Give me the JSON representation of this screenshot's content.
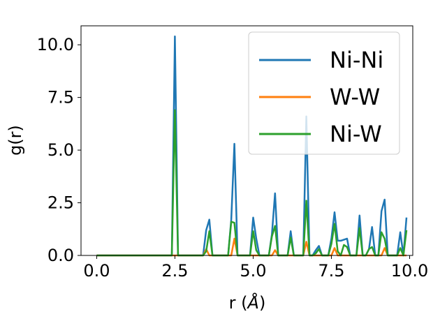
{
  "chart_data": {
    "type": "line",
    "title": "",
    "xlabel_base": "r (",
    "xlabel_unit": "Å",
    "xlabel_end": ")",
    "ylabel": "g(r)",
    "xlim": [
      -0.5,
      10.1
    ],
    "ylim": [
      0,
      10.9
    ],
    "xticks": [
      0.0,
      2.5,
      5.0,
      7.5,
      10.0
    ],
    "xtick_labels": [
      "0.0",
      "2.5",
      "5.0",
      "7.5",
      "10.0"
    ],
    "yticks": [
      0.0,
      2.5,
      5.0,
      7.5,
      10.0
    ],
    "ytick_labels": [
      "0.0",
      "2.5",
      "5.0",
      "7.5",
      "10.0"
    ],
    "grid": false,
    "legend_position": "top-right",
    "x": [
      0,
      0.1,
      0.2,
      0.3,
      0.4,
      0.5,
      0.6,
      0.7,
      0.8,
      0.9,
      1.0,
      1.1,
      1.2,
      1.3,
      1.4,
      1.5,
      1.6,
      1.7,
      1.8,
      1.9,
      2.0,
      2.1,
      2.2,
      2.3,
      2.4,
      2.5,
      2.6,
      2.7,
      2.8,
      2.9,
      3.0,
      3.1,
      3.2,
      3.3,
      3.4,
      3.5,
      3.6,
      3.7,
      3.8,
      3.9,
      4.0,
      4.1,
      4.2,
      4.3,
      4.4,
      4.5,
      4.6,
      4.7,
      4.8,
      4.9,
      5.0,
      5.1,
      5.2,
      5.3,
      5.4,
      5.5,
      5.6,
      5.7,
      5.8,
      5.9,
      6.0,
      6.1,
      6.2,
      6.3,
      6.4,
      6.5,
      6.6,
      6.7,
      6.8,
      6.9,
      7.0,
      7.1,
      7.2,
      7.3,
      7.4,
      7.5,
      7.6,
      7.7,
      7.8,
      7.9,
      8.0,
      8.1,
      8.2,
      8.3,
      8.4,
      8.5,
      8.6,
      8.7,
      8.8,
      8.9,
      9.0,
      9.1,
      9.2,
      9.3,
      9.4,
      9.5,
      9.6,
      9.7,
      9.8,
      9.9
    ],
    "series": [
      {
        "name": "Ni-Ni",
        "color": "#1f77b4",
        "values": [
          0,
          0,
          0,
          0,
          0,
          0,
          0,
          0,
          0,
          0,
          0,
          0,
          0,
          0,
          0,
          0,
          0,
          0,
          0,
          0,
          0,
          0,
          0,
          0,
          0,
          10.4,
          0,
          0,
          0,
          0,
          0,
          0,
          0,
          0,
          0,
          1.2,
          1.7,
          0,
          0,
          0,
          0,
          0,
          0,
          1.7,
          5.3,
          0,
          0,
          0,
          0,
          0,
          1.8,
          0.8,
          0,
          0,
          0,
          0,
          1.0,
          2.95,
          0,
          0,
          0,
          0,
          1.15,
          0,
          0,
          0,
          0,
          6.6,
          0,
          0,
          0.25,
          0.45,
          0,
          0,
          0,
          0.8,
          2.05,
          0.7,
          0.7,
          0.75,
          0.8,
          0,
          0,
          0,
          1.9,
          0,
          0,
          0.3,
          1.35,
          0,
          0,
          2.1,
          2.65,
          0,
          0,
          0,
          0,
          1.1,
          0,
          1.8
        ]
      },
      {
        "name": "W-W",
        "color": "#ff7f0e",
        "values": [
          0,
          0,
          0,
          0,
          0,
          0,
          0,
          0,
          0,
          0,
          0,
          0,
          0,
          0,
          0,
          0,
          0,
          0,
          0,
          0,
          0,
          0,
          0,
          0,
          0,
          0,
          0,
          0,
          0,
          0,
          0,
          0,
          0,
          0,
          0,
          0.3,
          0,
          0,
          0,
          0,
          0,
          0,
          0,
          0,
          0.8,
          0,
          0,
          0,
          0,
          0,
          0,
          0,
          0,
          0,
          0,
          0,
          0,
          0.25,
          0,
          0,
          0,
          0,
          0,
          0,
          0,
          0,
          0,
          0.65,
          0,
          0,
          0,
          0,
          0,
          0,
          0,
          0,
          0.35,
          0,
          0,
          0,
          0,
          0,
          0,
          0,
          0,
          0,
          0,
          0,
          0,
          0,
          0,
          0,
          0.35,
          0,
          0,
          0,
          0,
          0,
          0,
          0
        ]
      },
      {
        "name": "Ni-W",
        "color": "#2ca02c",
        "values": [
          0,
          0,
          0,
          0,
          0,
          0,
          0,
          0,
          0,
          0,
          0,
          0,
          0,
          0,
          0,
          0,
          0,
          0,
          0,
          0,
          0,
          0,
          0,
          0,
          0,
          6.9,
          0,
          0,
          0,
          0,
          0,
          0,
          0,
          0,
          0,
          0.2,
          1.15,
          0,
          0,
          0,
          0,
          0,
          0,
          1.6,
          1.55,
          0,
          0,
          0,
          0,
          0,
          1.15,
          0.25,
          0,
          0,
          0,
          0,
          0.9,
          1.4,
          0,
          0,
          0,
          0,
          0.85,
          0,
          0,
          0,
          0,
          2.6,
          0,
          0,
          0.1,
          0.3,
          0,
          0,
          0,
          0.55,
          1.5,
          0.2,
          0,
          0.5,
          0.4,
          0,
          0,
          0,
          1.3,
          0,
          0,
          0.3,
          0.4,
          0,
          0,
          1.1,
          0.8,
          0,
          0,
          0,
          0,
          0.35,
          0,
          1.2
        ]
      }
    ]
  }
}
